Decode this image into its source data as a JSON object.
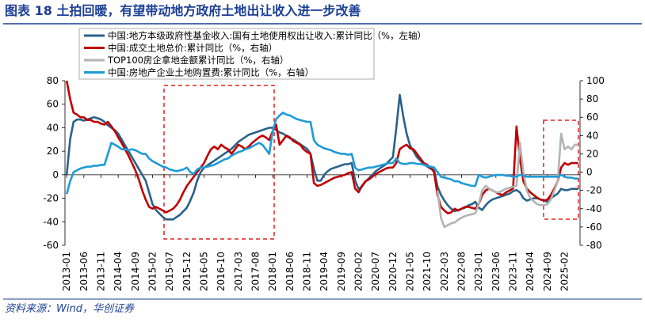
{
  "chart_data": {
    "type": "line",
    "title": "图表 18  土拍回暖，有望带动地方政府土地出让收入进一步改善",
    "source": "资料来源：Wind，华创证券",
    "categories": [
      "2013-01",
      null,
      null,
      null,
      null,
      "2013-06",
      null,
      null,
      null,
      null,
      "2013-11",
      null,
      null,
      null,
      null,
      "2014-04",
      null,
      null,
      null,
      null,
      "2014-09",
      null,
      null,
      null,
      null,
      "2015-02",
      null,
      null,
      null,
      null,
      "2015-07",
      null,
      null,
      null,
      null,
      "2015-12",
      null,
      null,
      null,
      null,
      "2016-05",
      null,
      null,
      null,
      null,
      "2016-10",
      null,
      null,
      null,
      null,
      "2017-03",
      null,
      null,
      null,
      null,
      "2017-08",
      null,
      null,
      null,
      null,
      "2018-01",
      null,
      null,
      null,
      null,
      "2018-06",
      null,
      null,
      null,
      null,
      "2018-11",
      null,
      null,
      null,
      null,
      "2019-04",
      null,
      null,
      null,
      null,
      "2019-09",
      null,
      null,
      null,
      null,
      "2020-02",
      null,
      null,
      null,
      null,
      "2020-07",
      null,
      null,
      null,
      null,
      "2020-12",
      null,
      null,
      null,
      null,
      "2021-05",
      null,
      null,
      null,
      null,
      "2021-10",
      null,
      null,
      null,
      null,
      "2022-03",
      null,
      null,
      null,
      null,
      "2022-08",
      null,
      null,
      null,
      null,
      "2023-01",
      null,
      null,
      null,
      null,
      "2023-06",
      null,
      null,
      null,
      null,
      "2023-11",
      null,
      null,
      null,
      null,
      "2024-04",
      null,
      null,
      null,
      null,
      "2024-09",
      null,
      null,
      null,
      null,
      "2025-02",
      null,
      null,
      null,
      null
    ],
    "ylim": [
      -60,
      80
    ],
    "yticks": [
      -60,
      -40,
      -20,
      0,
      20,
      40,
      60,
      80
    ],
    "y2lim": [
      -80,
      100
    ],
    "y2ticks": [
      -80,
      -60,
      -40,
      -20,
      0,
      20,
      40,
      60,
      80,
      100
    ],
    "series": [
      {
        "name": "中国:地方本级政府性基金收入:国有土地使用权出让收入:累计同比（%，左轴）",
        "color": "#2a6289",
        "values": [
          0,
          30,
          45,
          47,
          47,
          46,
          47,
          48,
          49,
          48,
          47,
          45,
          42,
          40,
          38,
          35,
          30,
          25,
          20,
          15,
          10,
          5,
          0,
          -5,
          -15,
          -25,
          -30,
          -33,
          -36,
          -38,
          -38,
          -38,
          -36,
          -34,
          -31,
          -28,
          -22,
          -15,
          -5,
          2,
          6,
          8,
          10,
          12,
          14,
          16,
          18,
          20,
          22,
          25,
          28,
          30,
          32,
          34,
          35,
          36,
          37,
          38,
          39,
          40,
          40,
          38,
          36,
          35,
          33,
          31,
          30,
          28,
          26,
          24,
          22,
          18,
          5,
          -5,
          -5,
          0,
          3,
          5,
          6,
          7,
          8,
          9,
          9,
          10,
          -5,
          -12,
          -10,
          -6,
          -3,
          0,
          3,
          5,
          7,
          9,
          12,
          15,
          40,
          68,
          50,
          35,
          25,
          20,
          15,
          12,
          9,
          7,
          5,
          4,
          -10,
          -17,
          -22,
          -26,
          -29,
          -31,
          -30,
          -29,
          -28,
          -26,
          -25,
          -23,
          -28,
          -30,
          -26,
          -23,
          -21,
          -20,
          -19,
          -18,
          -17,
          -16,
          -14,
          -13,
          -15,
          -20,
          -22,
          -21,
          -20,
          -20,
          -21,
          -22,
          -23,
          -20,
          -18,
          -16,
          -12,
          -13,
          -13,
          -12,
          -12,
          -12
        ]
      },
      {
        "name": "中国:成交土地总价:累计同比（%，右轴）",
        "color": "#c00000",
        "axis": "y2",
        "values": [
          100,
          80,
          65,
          63,
          60,
          60,
          57,
          57,
          55,
          55,
          53,
          52,
          55,
          50,
          45,
          38,
          32,
          25,
          18,
          10,
          2,
          -8,
          -20,
          -30,
          -38,
          -40,
          -38,
          -40,
          -42,
          -44,
          -42,
          -40,
          -36,
          -30,
          -22,
          -15,
          -10,
          -5,
          0,
          5,
          10,
          18,
          25,
          28,
          25,
          30,
          27,
          25,
          20,
          25,
          30,
          28,
          25,
          28,
          32,
          35,
          38,
          40,
          38,
          35,
          45,
          52,
          30,
          35,
          40,
          38,
          34,
          32,
          30,
          25,
          22,
          20,
          -12,
          -15,
          -14,
          -12,
          -10,
          -8,
          -6,
          -5,
          -4,
          -3,
          -1,
          0,
          -18,
          -22,
          -15,
          -10,
          -8,
          -5,
          -2,
          0,
          2,
          4,
          5,
          5,
          10,
          25,
          28,
          30,
          26,
          25,
          20,
          15,
          10,
          8,
          5,
          0,
          -25,
          -38,
          -42,
          -45,
          -44,
          -40,
          -42,
          -40,
          -38,
          -38,
          -39,
          -40,
          -35,
          -25,
          -20,
          -18,
          -20,
          -22,
          -24,
          -25,
          -22,
          -20,
          -18,
          50,
          15,
          -10,
          -18,
          -22,
          -25,
          -28,
          -30,
          -31,
          -30,
          -25,
          -18,
          -10,
          5,
          10,
          8,
          10,
          10,
          10
        ]
      },
      {
        "name": "TOP100房企拿地金额累计同比（%，右轴）",
        "color": "#b3b3b3",
        "axis": "y2",
        "values": [
          null,
          null,
          null,
          null,
          null,
          null,
          null,
          null,
          null,
          null,
          null,
          null,
          null,
          null,
          null,
          null,
          null,
          null,
          null,
          null,
          null,
          null,
          null,
          null,
          null,
          null,
          null,
          null,
          null,
          null,
          null,
          null,
          null,
          null,
          null,
          null,
          null,
          null,
          null,
          null,
          null,
          null,
          null,
          null,
          null,
          null,
          null,
          null,
          null,
          null,
          null,
          null,
          null,
          null,
          null,
          null,
          null,
          null,
          null,
          null,
          null,
          null,
          null,
          null,
          null,
          null,
          null,
          null,
          null,
          null,
          null,
          null,
          null,
          null,
          null,
          null,
          null,
          null,
          null,
          null,
          null,
          null,
          null,
          null,
          null,
          null,
          null,
          null,
          null,
          null,
          null,
          null,
          null,
          null,
          null,
          null,
          null,
          null,
          null,
          null,
          null,
          null,
          null,
          null,
          null,
          null,
          null,
          null,
          -20,
          -50,
          -60,
          -58,
          -56,
          -55,
          -52,
          -50,
          -48,
          -47,
          -46,
          -45,
          -35,
          -20,
          -15,
          -18,
          -20,
          -22,
          -22,
          -20,
          -18,
          -17,
          -16,
          -15,
          32,
          0,
          -20,
          -28,
          -32,
          -35,
          -36,
          -36,
          -35,
          -30,
          -20,
          -10,
          42,
          25,
          28,
          25,
          30,
          30
        ]
      },
      {
        "name": "中国:房地产企业土地购置费:累计同比（%，右轴）",
        "color": "#1e9bd7",
        "axis": "y2",
        "values": [
          -24,
          -10,
          0,
          2,
          4,
          5,
          6,
          6,
          7,
          7,
          8,
          8,
          20,
          32,
          30,
          28,
          25,
          25,
          24,
          25,
          24,
          22,
          20,
          20,
          15,
          12,
          10,
          8,
          6,
          5,
          3,
          2,
          1,
          2,
          3,
          5,
          0,
          -2,
          3,
          5,
          5,
          6,
          7,
          8,
          10,
          12,
          14,
          15,
          18,
          20,
          22,
          23,
          25,
          26,
          28,
          30,
          32,
          30,
          25,
          20,
          45,
          58,
          62,
          65,
          63,
          62,
          60,
          58,
          57,
          56,
          55,
          55,
          35,
          30,
          28,
          26,
          25,
          24,
          22,
          21,
          20,
          20,
          19,
          20,
          5,
          2,
          3,
          4,
          5,
          5,
          6,
          7,
          8,
          9,
          10,
          10,
          15,
          10,
          9,
          9,
          10,
          10,
          9,
          9,
          8,
          7,
          6,
          5,
          0,
          -5,
          -6,
          -7,
          -8,
          -10,
          -10,
          -12,
          -13,
          -14,
          -15,
          -15,
          -3,
          -5,
          -6,
          -5,
          -4,
          -3,
          -3,
          -3,
          -4,
          -4,
          -5,
          -5,
          -3,
          -4,
          -5,
          -5,
          -5,
          -5,
          -5,
          -5,
          -5,
          -5,
          -5,
          -5,
          -3,
          -5,
          -6,
          -6,
          -7,
          -7
        ]
      }
    ]
  }
}
